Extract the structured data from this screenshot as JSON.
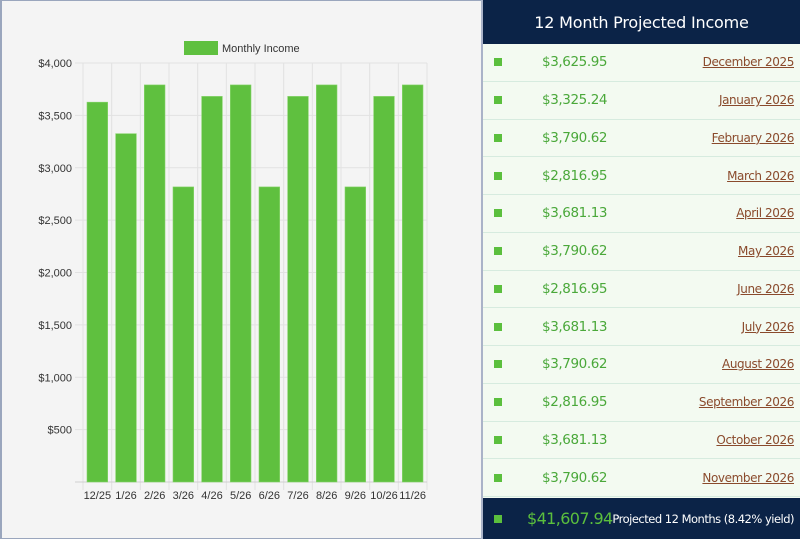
{
  "chart_data": {
    "type": "bar",
    "title": "",
    "xlabel": "",
    "ylabel": "",
    "legend": {
      "entries": [
        "Monthly Income"
      ],
      "placement": "top-center"
    },
    "categories": [
      "12/25",
      "1/26",
      "2/26",
      "3/26",
      "4/26",
      "5/26",
      "6/26",
      "7/26",
      "8/26",
      "9/26",
      "10/26",
      "11/26"
    ],
    "series": [
      {
        "name": "Monthly Income",
        "color": "#5fc03f",
        "values": [
          3625.95,
          3325.24,
          3790.62,
          2816.95,
          3681.13,
          3790.62,
          2816.95,
          3681.13,
          3790.62,
          2816.95,
          3681.13,
          3790.62
        ]
      }
    ],
    "ylim": [
      0,
      4000
    ],
    "yticks": [
      500,
      1000,
      1500,
      2000,
      2500,
      3000,
      3500,
      4000
    ],
    "ytick_labels": [
      "$500",
      "$1,000",
      "$1,500",
      "$2,000",
      "$2,500",
      "$3,000",
      "$3,500",
      "$4,000"
    ],
    "grid": true
  },
  "panel": {
    "title": "12 Month Projected Income",
    "rows": [
      {
        "amount": "$3,625.95",
        "month": "December 2025"
      },
      {
        "amount": "$3,325.24",
        "month": "January 2026"
      },
      {
        "amount": "$3,790.62",
        "month": "February 2026"
      },
      {
        "amount": "$2,816.95",
        "month": "March 2026"
      },
      {
        "amount": "$3,681.13",
        "month": "April 2026"
      },
      {
        "amount": "$3,790.62",
        "month": "May 2026"
      },
      {
        "amount": "$2,816.95",
        "month": "June 2026"
      },
      {
        "amount": "$3,681.13",
        "month": "July 2026"
      },
      {
        "amount": "$3,790.62",
        "month": "August 2026"
      },
      {
        "amount": "$2,816.95",
        "month": "September 2026"
      },
      {
        "amount": "$3,681.13",
        "month": "October 2026"
      },
      {
        "amount": "$3,790.62",
        "month": "November 2026"
      }
    ],
    "total": {
      "amount": "$41,607.94",
      "caption": "Projected 12 Months (8.42% yield)"
    }
  },
  "colors": {
    "accent_green": "#5fc03f",
    "header_navy": "#0b2347",
    "link_brown": "#8a4a2c",
    "row_bg": "#f3faf1"
  }
}
